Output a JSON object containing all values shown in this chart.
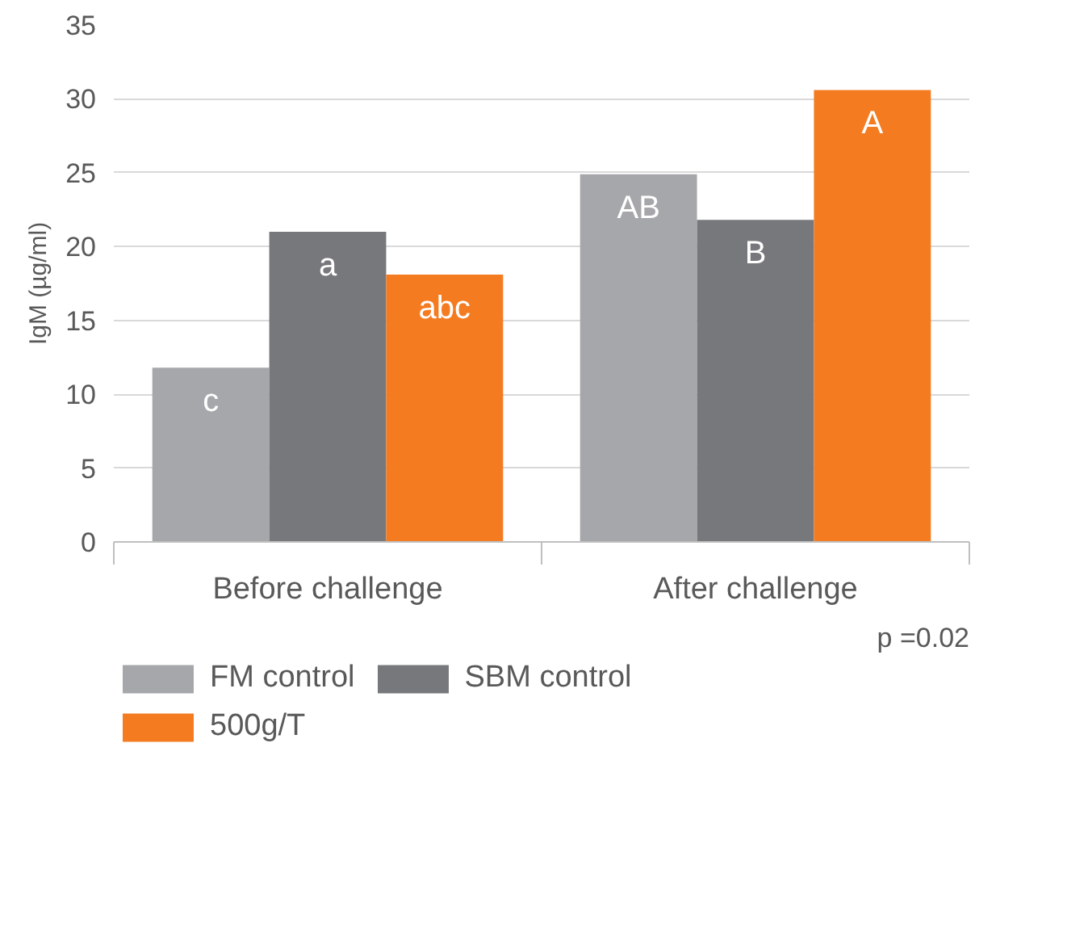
{
  "chart_data": {
    "type": "bar",
    "ylabel": "IgM (µg/ml)",
    "categories": [
      "Before challenge",
      "After challenge"
    ],
    "series": [
      {
        "name": "FM control",
        "color": "#a6a7aa",
        "values": [
          11.8,
          24.9
        ],
        "value_labels": [
          "c",
          "AB"
        ]
      },
      {
        "name": "SBM control",
        "color": "#77787b",
        "values": [
          21.0,
          21.8
        ],
        "value_labels": [
          "a",
          "B"
        ]
      },
      {
        "name": "500g/T",
        "color": "#f47b20",
        "values": [
          18.1,
          30.6
        ],
        "value_labels": [
          "abc",
          "A"
        ]
      }
    ],
    "ylim": [
      0,
      35
    ],
    "yticks": [
      0,
      5,
      10,
      15,
      20,
      25,
      30,
      35
    ],
    "grid": "y",
    "legend": "bottom",
    "annotations": [
      "p =0.02"
    ]
  }
}
